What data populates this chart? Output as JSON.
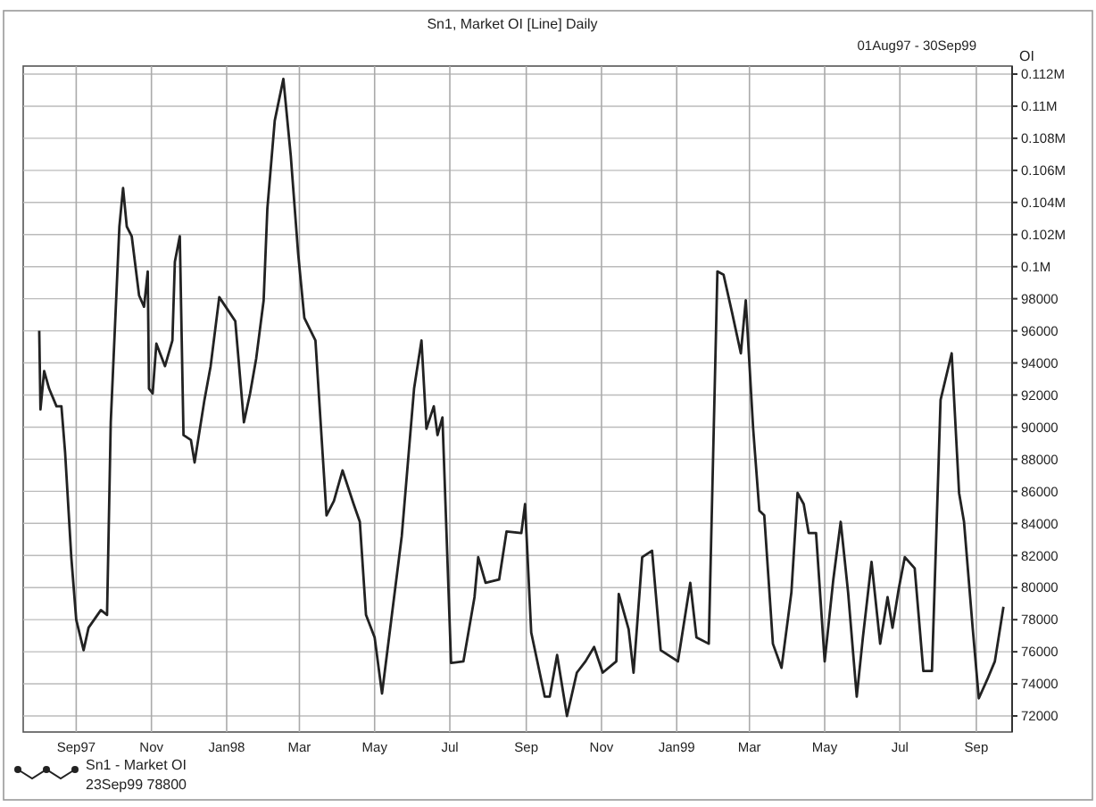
{
  "chart_data": {
    "type": "line",
    "title": "Sn1, Market OI [Line] Daily",
    "subtitle": "01Aug97 - 30Sep99",
    "ylabel": "OI",
    "annotations": [
      "23Sep99 78800"
    ],
    "legend": "bottom left",
    "grid": true,
    "xlim": [
      "1997-07-20",
      "1999-09-30"
    ],
    "xticks": [
      {
        "value": "1997-09-01",
        "label": "Sep97"
      },
      {
        "value": "1997-11-01",
        "label": "Nov"
      },
      {
        "value": "1998-01-01",
        "label": "Jan98"
      },
      {
        "value": "1998-03-01",
        "label": "Mar"
      },
      {
        "value": "1998-05-01",
        "label": "May"
      },
      {
        "value": "1998-07-01",
        "label": "Jul"
      },
      {
        "value": "1998-09-01",
        "label": "Sep"
      },
      {
        "value": "1998-11-01",
        "label": "Nov"
      },
      {
        "value": "1999-01-01",
        "label": "Jan99"
      },
      {
        "value": "1999-03-01",
        "label": "Mar"
      },
      {
        "value": "1999-05-01",
        "label": "May"
      },
      {
        "value": "1999-07-01",
        "label": "Jul"
      },
      {
        "value": "1999-09-01",
        "label": "Sep"
      }
    ],
    "ylim": [
      71000,
      112500
    ],
    "yticks": [
      72000,
      74000,
      76000,
      78000,
      80000,
      82000,
      84000,
      86000,
      88000,
      90000,
      92000,
      94000,
      96000,
      98000,
      {
        "value": 100000,
        "label": "0.1M"
      },
      {
        "value": 102000,
        "label": "0.102M"
      },
      {
        "value": 104000,
        "label": "0.104M"
      },
      {
        "value": 106000,
        "label": "0.106M"
      },
      {
        "value": 108000,
        "label": "0.108M"
      },
      {
        "value": 110000,
        "label": "0.11M"
      },
      {
        "value": 112000,
        "label": "0.112M"
      }
    ],
    "series": [
      {
        "name": "Sn1 - Market OI",
        "color": "#222222",
        "x": [
          "1997-08-02",
          "1997-08-03",
          "1997-08-06",
          "1997-08-10",
          "1997-08-16",
          "1997-08-20",
          "1997-08-23",
          "1997-08-28",
          "1997-09-01",
          "1997-09-07",
          "1997-09-11",
          "1997-09-21",
          "1997-09-26",
          "1997-09-29",
          "1997-10-06",
          "1997-10-09",
          "1997-10-12",
          "1997-10-16",
          "1997-10-22",
          "1997-10-26",
          "1997-10-29",
          "1997-10-30",
          "1997-11-02",
          "1997-11-05",
          "1997-11-12",
          "1997-11-18",
          "1997-11-20",
          "1997-11-24",
          "1997-11-27",
          "1997-12-03",
          "1997-12-06",
          "1997-12-14",
          "1997-12-19",
          "1997-12-26",
          "1998-01-08",
          "1998-01-15",
          "1998-01-20",
          "1998-01-25",
          "1998-01-31",
          "1998-02-03",
          "1998-02-09",
          "1998-02-16",
          "1998-02-22",
          "1998-02-28",
          "1998-03-05",
          "1998-03-14",
          "1998-03-23",
          "1998-03-29",
          "1998-04-05",
          "1998-04-14",
          "1998-04-19",
          "1998-04-24",
          "1998-05-01",
          "1998-05-07",
          "1998-05-15",
          "1998-05-23",
          "1998-06-02",
          "1998-06-08",
          "1998-06-12",
          "1998-06-18",
          "1998-06-21",
          "1998-06-25",
          "1998-07-02",
          "1998-07-12",
          "1998-07-21",
          "1998-07-24",
          "1998-07-30",
          "1998-08-10",
          "1998-08-16",
          "1998-08-28",
          "1998-08-31",
          "1998-09-05",
          "1998-09-16",
          "1998-09-20",
          "1998-09-26",
          "1998-10-04",
          "1998-10-12",
          "1998-10-19",
          "1998-10-26",
          "1998-11-02",
          "1998-11-13",
          "1998-11-15",
          "1998-11-23",
          "1998-11-27",
          "1998-12-04",
          "1998-12-12",
          "1998-12-19",
          "1999-01-02",
          "1999-01-12",
          "1999-01-17",
          "1999-01-27",
          "1999-02-03",
          "1999-02-08",
          "1999-02-15",
          "1999-02-22",
          "1999-02-26",
          "1999-03-04",
          "1999-03-09",
          "1999-03-13",
          "1999-03-20",
          "1999-03-27",
          "1999-04-04",
          "1999-04-09",
          "1999-04-14",
          "1999-04-18",
          "1999-04-24",
          "1999-05-01",
          "1999-05-08",
          "1999-05-14",
          "1999-05-20",
          "1999-05-27",
          "1999-06-01",
          "1999-06-08",
          "1999-06-15",
          "1999-06-21",
          "1999-06-25",
          "1999-06-30",
          "1999-07-05",
          "1999-07-13",
          "1999-07-20",
          "1999-07-27",
          "1999-08-03",
          "1999-08-12",
          "1999-08-18",
          "1999-08-22",
          "1999-08-29",
          "1999-09-03",
          "1999-09-10",
          "1999-09-16",
          "1999-09-23"
        ],
        "values": [
          96000,
          91100,
          93500,
          92400,
          91300,
          91300,
          88400,
          81900,
          78000,
          76100,
          77500,
          78600,
          78300,
          90300,
          102500,
          104900,
          102500,
          101900,
          98200,
          97500,
          99700,
          92400,
          92100,
          95200,
          93800,
          95400,
          100300,
          101900,
          89500,
          89200,
          87800,
          91700,
          93800,
          98100,
          96600,
          90300,
          92100,
          94300,
          97900,
          103600,
          109100,
          111700,
          106900,
          100800,
          96800,
          95400,
          84500,
          85400,
          87300,
          85200,
          84100,
          78300,
          76900,
          73400,
          78300,
          83200,
          92400,
          95400,
          89900,
          91300,
          89500,
          90600,
          75300,
          75400,
          79400,
          81900,
          80300,
          80500,
          83500,
          83400,
          85200,
          77200,
          73200,
          73200,
          75800,
          72000,
          74700,
          75400,
          76300,
          74700,
          75400,
          79600,
          77400,
          74700,
          81900,
          82300,
          76100,
          75400,
          80300,
          76900,
          76500,
          99700,
          99500,
          97100,
          94600,
          97900,
          89900,
          84800,
          84500,
          76500,
          75000,
          79700,
          85900,
          85200,
          83400,
          83400,
          75400,
          80500,
          84100,
          79700,
          73200,
          76900,
          81600,
          76500,
          79400,
          77500,
          79900,
          81900,
          81200,
          74800,
          74800,
          91700,
          94600,
          85900,
          84100,
          77500,
          73100,
          74300,
          75400,
          78800
        ]
      }
    ]
  }
}
